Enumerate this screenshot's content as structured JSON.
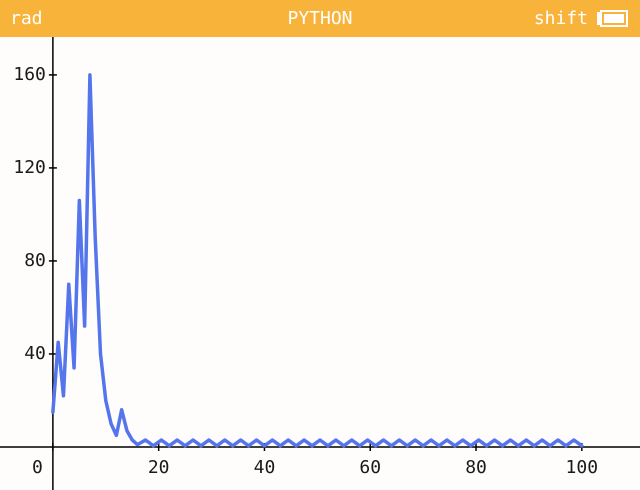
{
  "status_bar": {
    "left": "rad",
    "title": "PYTHON",
    "right": "shift"
  },
  "chart_data": {
    "type": "line",
    "x": [
      0,
      1,
      2,
      3,
      4,
      5,
      6,
      7,
      8,
      9,
      10,
      11,
      12,
      13,
      14,
      15,
      16,
      17.5,
      19,
      20.5,
      22,
      23.5,
      25,
      26.5,
      28,
      29.5,
      31,
      32.5,
      34,
      35.5,
      37,
      38.5,
      40,
      41.5,
      43,
      44.5,
      46,
      47.5,
      49,
      50.5,
      52,
      53.5,
      55,
      56.5,
      58,
      59.5,
      61,
      62.5,
      64,
      65.5,
      67,
      68.5,
      70,
      71.5,
      73,
      74.5,
      76,
      77.5,
      79,
      80.5,
      82,
      83.5,
      85,
      86.5,
      88,
      89.5,
      91,
      92.5,
      94,
      95.5,
      97,
      98.5,
      100
    ],
    "series": [
      {
        "color": "#5475ec",
        "values": [
          15,
          45,
          22,
          70,
          34,
          106,
          52,
          160,
          90,
          40,
          20,
          10,
          5,
          16,
          7,
          3,
          1,
          3,
          0.5,
          3,
          0.5,
          3,
          0.5,
          3,
          0.5,
          3,
          0.5,
          3,
          0.5,
          3,
          0.5,
          3,
          0.5,
          3,
          0.5,
          3,
          0.5,
          3,
          0.5,
          3,
          0.5,
          3,
          0.5,
          3,
          0.5,
          3,
          0.5,
          3,
          0.5,
          3,
          0.5,
          3,
          0.5,
          3,
          0.5,
          3,
          0.5,
          3,
          0.5,
          3,
          0.5,
          3,
          0.5,
          3,
          0.5,
          3,
          0.5,
          3,
          0.5,
          3,
          0.5,
          3,
          0.5
        ]
      }
    ],
    "xlim": [
      -10,
      111
    ],
    "ylim": [
      -18.5,
      176.3
    ],
    "xticks": [
      0,
      20,
      40,
      60,
      80,
      100
    ],
    "yticks": [
      40,
      80,
      120,
      160
    ]
  }
}
